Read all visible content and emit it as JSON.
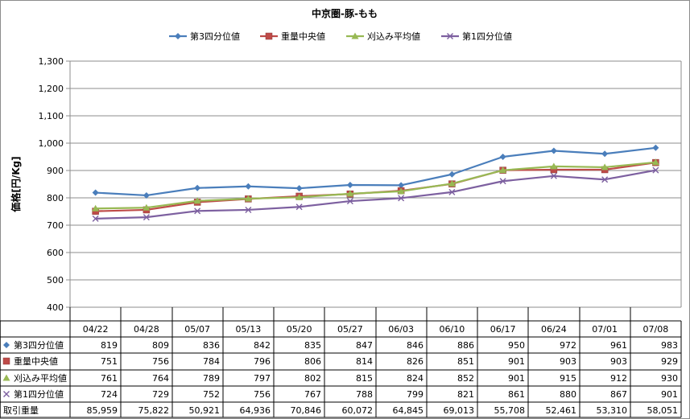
{
  "chart_data": {
    "type": "line",
    "title": "中京圏-豚-もも",
    "ylabel": "価格[円/Kg]",
    "xlabel": "",
    "ylim": [
      400,
      1300
    ],
    "yticks": [
      "400",
      "500",
      "600",
      "700",
      "800",
      "900",
      "1,000",
      "1,100",
      "1,200",
      "1,300"
    ],
    "grid": true,
    "legend_position": "top",
    "categories": [
      "04/22",
      "04/28",
      "05/07",
      "05/13",
      "05/20",
      "05/27",
      "06/03",
      "06/10",
      "06/17",
      "06/24",
      "07/01",
      "07/08"
    ],
    "series": [
      {
        "name": "第3四分位値",
        "color": "#4a7ebb",
        "marker": "diamond",
        "values": [
          819,
          809,
          836,
          842,
          835,
          847,
          846,
          886,
          950,
          972,
          961,
          983
        ],
        "labels": [
          "819",
          "809",
          "836",
          "842",
          "835",
          "847",
          "846",
          "886",
          "950",
          "972",
          "961",
          "983"
        ]
      },
      {
        "name": "重量中央値",
        "color": "#be4b48",
        "marker": "square",
        "values": [
          751,
          756,
          784,
          796,
          806,
          814,
          826,
          851,
          901,
          903,
          903,
          929
        ],
        "labels": [
          "751",
          "756",
          "784",
          "796",
          "806",
          "814",
          "826",
          "851",
          "901",
          "903",
          "903",
          "929"
        ]
      },
      {
        "name": "刈込み平均値",
        "color": "#98b954",
        "marker": "triangle",
        "values": [
          761,
          764,
          789,
          797,
          802,
          815,
          824,
          852,
          901,
          915,
          912,
          930
        ],
        "labels": [
          "761",
          "764",
          "789",
          "797",
          "802",
          "815",
          "824",
          "852",
          "901",
          "915",
          "912",
          "930"
        ]
      },
      {
        "name": "第1四分位値",
        "color": "#7d60a0",
        "marker": "x",
        "values": [
          724,
          729,
          752,
          756,
          767,
          788,
          799,
          821,
          861,
          880,
          867,
          901
        ],
        "labels": [
          "724",
          "729",
          "752",
          "756",
          "767",
          "788",
          "799",
          "821",
          "861",
          "880",
          "867",
          "901"
        ]
      }
    ],
    "table_extra_row": {
      "name": "取引重量",
      "values": [
        "85,959",
        "75,822",
        "50,921",
        "64,936",
        "70,846",
        "60,072",
        "64,845",
        "69,013",
        "55,708",
        "52,461",
        "53,310",
        "58,051"
      ]
    }
  }
}
